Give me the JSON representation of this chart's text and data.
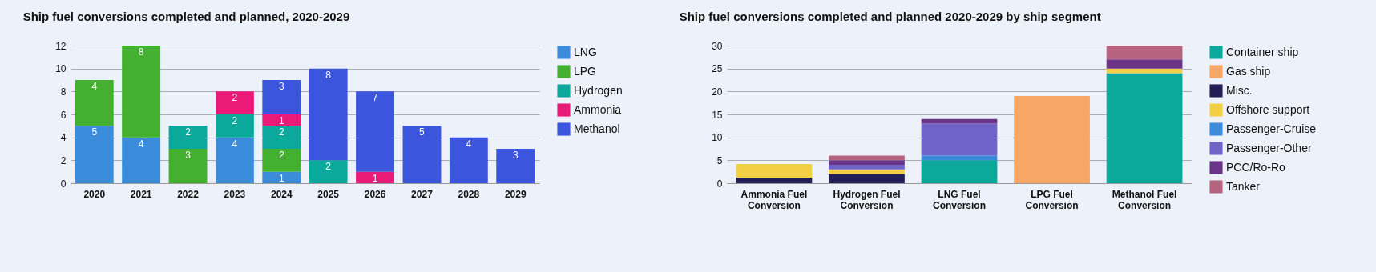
{
  "chart_data": [
    {
      "type": "bar",
      "title": "Ship fuel conversions completed and planned, 2020-2029",
      "categories": [
        "2020",
        "2021",
        "2022",
        "2023",
        "2024",
        "2025",
        "2026",
        "2027",
        "2028",
        "2029"
      ],
      "stacked": true,
      "data_labels": true,
      "grid": "y",
      "legend": "right",
      "ylim": [
        0,
        12
      ],
      "yticks": [
        0,
        2,
        4,
        6,
        8,
        10,
        12
      ],
      "series": [
        {
          "name": "LNG",
          "color": "#3b8ddb",
          "values": [
            5,
            4,
            null,
            4,
            1,
            null,
            null,
            null,
            null,
            null
          ]
        },
        {
          "name": "LPG",
          "color": "#43b02f",
          "values": [
            4,
            8,
            3,
            null,
            2,
            null,
            null,
            null,
            null,
            null
          ]
        },
        {
          "name": "Hydrogen",
          "color": "#0aa99c",
          "values": [
            null,
            null,
            2,
            2,
            2,
            2,
            null,
            null,
            null,
            null
          ]
        },
        {
          "name": "Ammonia",
          "color": "#ea1a78",
          "values": [
            null,
            null,
            null,
            2,
            1,
            null,
            1,
            null,
            null,
            null
          ]
        },
        {
          "name": "Methanol",
          "color": "#3c55dd",
          "values": [
            null,
            null,
            null,
            null,
            3,
            8,
            7,
            5,
            4,
            3
          ]
        }
      ]
    },
    {
      "type": "bar",
      "title": "Ship fuel conversions completed and planned 2020-2029 by ship segment",
      "categories": [
        "Ammonia Fuel Conversion",
        "Hydrogen Fuel Conversion",
        "LNG Fuel Conversion",
        "LPG Fuel Conversion",
        "Methanol Fuel Conversion"
      ],
      "stacked": true,
      "grid": "y",
      "legend": "right",
      "ylim": [
        0,
        30
      ],
      "yticks": [
        0,
        5,
        10,
        15,
        20,
        25,
        30
      ],
      "series": [
        {
          "name": "Container ship",
          "color": "#0aa99c",
          "values": [
            null,
            null,
            5,
            null,
            24
          ]
        },
        {
          "name": "Gas ship",
          "color": "#f6a766",
          "values": [
            null,
            null,
            null,
            19,
            null
          ]
        },
        {
          "name": "Misc.",
          "color": "#231f56",
          "values": [
            1.2,
            2,
            null,
            null,
            null
          ]
        },
        {
          "name": "Offshore support",
          "color": "#f2cf44",
          "values": [
            3,
            1,
            null,
            null,
            1
          ]
        },
        {
          "name": "Passenger-Cruise",
          "color": "#3b8ddb",
          "values": [
            null,
            null,
            1,
            null,
            null
          ]
        },
        {
          "name": "Passenger-Other",
          "color": "#7064c9",
          "values": [
            null,
            1,
            7,
            null,
            null
          ]
        },
        {
          "name": "PCC/Ro-Ro",
          "color": "#6a3589",
          "values": [
            null,
            1,
            1,
            null,
            2
          ]
        },
        {
          "name": "Tanker",
          "color": "#b5637f",
          "values": [
            null,
            1,
            null,
            null,
            3
          ]
        }
      ]
    }
  ]
}
